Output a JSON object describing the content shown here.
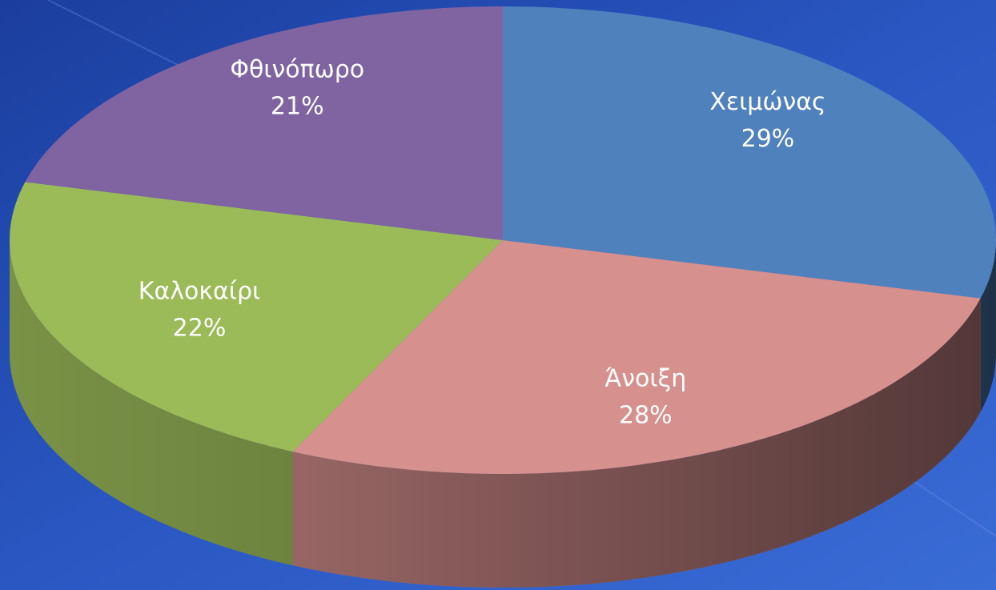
{
  "chart_data": {
    "type": "pie3d",
    "categories": [
      "Χειμώνας",
      "Άνοιξη",
      "Καλοκαίρι",
      "Φθινόπωρο"
    ],
    "values": [
      29,
      28,
      22,
      21
    ],
    "value_labels": [
      "29%",
      "28%",
      "22%",
      "21%"
    ],
    "colors": [
      "#4f81bd",
      "#d6908e",
      "#9bbb59",
      "#8064a2"
    ]
  }
}
